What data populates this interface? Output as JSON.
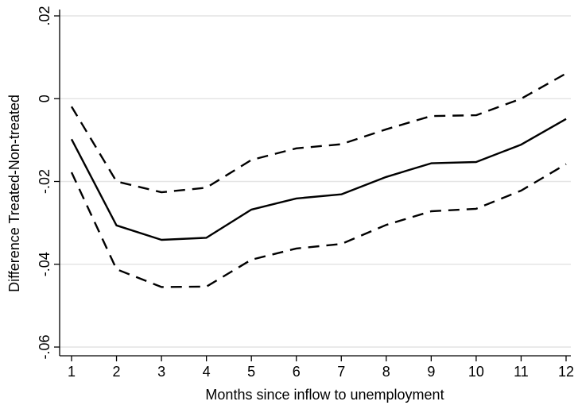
{
  "chart_data": {
    "type": "line",
    "xlabel": "Months since inflow to unemployment",
    "ylabel": "Difference Treated-Non-treated",
    "x": [
      1,
      2,
      3,
      4,
      5,
      6,
      7,
      8,
      9,
      10,
      11,
      12
    ],
    "xlim": [
      1,
      12
    ],
    "ylim": [
      -0.06,
      0.02
    ],
    "x_ticks": [
      "1",
      "2",
      "3",
      "4",
      "5",
      "6",
      "7",
      "8",
      "9",
      "10",
      "11",
      "12"
    ],
    "y_ticks": [
      {
        "value": 0.02,
        "label": ".02"
      },
      {
        "value": 0.0,
        "label": "0"
      },
      {
        "value": -0.02,
        "label": "-.02"
      },
      {
        "value": -0.04,
        "label": "-.04"
      },
      {
        "value": -0.06,
        "label": "-.06"
      }
    ],
    "grid": "horizontal",
    "legend": "none",
    "series": [
      {
        "style": "solid",
        "values": [
          -0.0098,
          -0.0306,
          -0.0341,
          -0.0336,
          -0.0268,
          -0.0241,
          -0.0231,
          -0.0189,
          -0.0156,
          -0.0153,
          -0.0111,
          -0.0049
        ]
      },
      {
        "style": "dashed",
        "values": [
          -0.0019,
          -0.02,
          -0.0226,
          -0.0215,
          -0.0148,
          -0.012,
          -0.011,
          -0.0074,
          -0.0042,
          -0.004,
          0.0,
          0.0061
        ]
      },
      {
        "style": "dashed",
        "values": [
          -0.0178,
          -0.0412,
          -0.0455,
          -0.0454,
          -0.0389,
          -0.0362,
          -0.0351,
          -0.0305,
          -0.0272,
          -0.0266,
          -0.0222,
          -0.0158
        ]
      }
    ]
  }
}
